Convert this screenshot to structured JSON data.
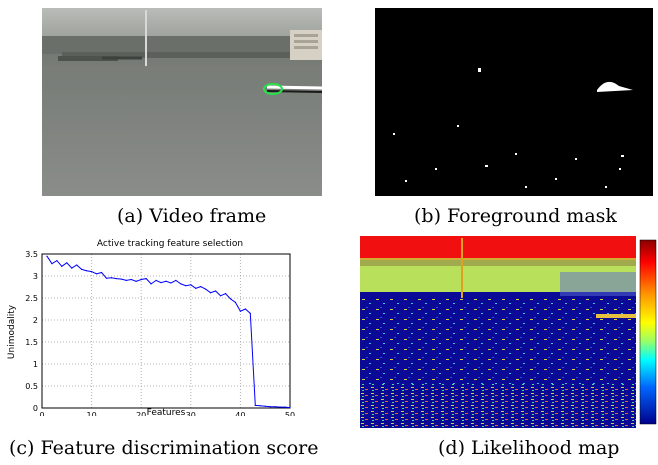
{
  "figure": {
    "captions": {
      "a": "(a) Video frame",
      "b": "(b) Foreground mask",
      "c": "(c) Feature discrimination score",
      "d": "(d) Likelihood map"
    }
  },
  "chart_data": {
    "type": "line",
    "title": "Active tracking feature selection",
    "xlabel": "Features",
    "ylabel": "Unimodality",
    "xlim": [
      0,
      50
    ],
    "ylim": [
      0,
      3.5
    ],
    "xticks": [
      "0",
      "10",
      "20",
      "30",
      "40",
      "50"
    ],
    "yticks": [
      "0",
      "0.5",
      "1",
      "1.5",
      "2",
      "2.5",
      "3",
      "3.5"
    ],
    "grid": true,
    "series": [
      {
        "color": "#0000ff",
        "x": [
          1,
          2,
          3,
          4,
          5,
          6,
          7,
          8,
          9,
          10,
          11,
          12,
          13,
          14,
          15,
          16,
          17,
          18,
          19,
          20,
          21,
          22,
          23,
          24,
          25,
          26,
          27,
          28,
          29,
          30,
          31,
          32,
          33,
          34,
          35,
          36,
          37,
          38,
          39,
          40,
          41,
          42,
          43,
          44,
          45,
          46,
          47,
          48,
          49,
          50
        ],
        "y": [
          3.45,
          3.28,
          3.35,
          3.22,
          3.3,
          3.18,
          3.25,
          3.15,
          3.12,
          3.1,
          3.05,
          3.08,
          2.95,
          2.96,
          2.94,
          2.93,
          2.9,
          2.92,
          2.88,
          2.92,
          2.94,
          2.82,
          2.9,
          2.85,
          2.88,
          2.84,
          2.9,
          2.82,
          2.78,
          2.8,
          2.72,
          2.76,
          2.7,
          2.62,
          2.66,
          2.55,
          2.6,
          2.48,
          2.4,
          2.2,
          2.25,
          2.15,
          0.06,
          0.05,
          0.04,
          0.03,
          0.03,
          0.02,
          0.02,
          0.01
        ]
      }
    ]
  }
}
